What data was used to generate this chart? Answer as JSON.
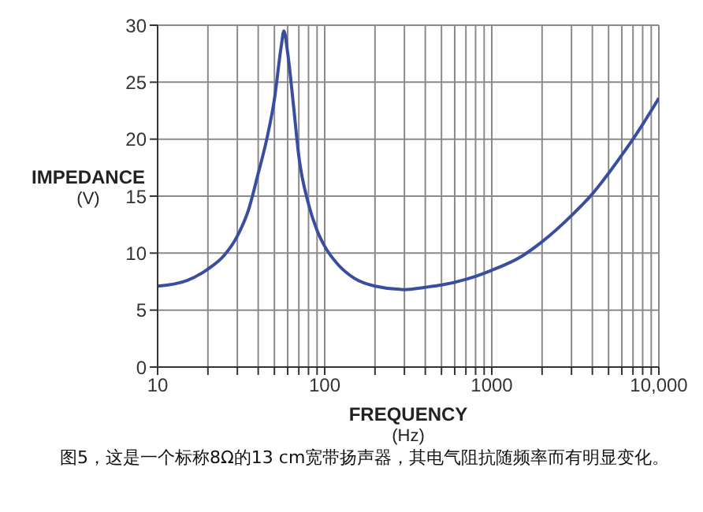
{
  "chart_data": {
    "type": "line",
    "xlabel": "FREQUENCY\n(Hz)",
    "ylabel": "IMPEDANCE\n(V)",
    "log": "x",
    "grid": true,
    "legend": false,
    "marker": "none",
    "line_style": "solid",
    "xlim": [
      10,
      10000
    ],
    "ylim": [
      0,
      30
    ],
    "xticks": [
      10,
      {
        "value": 20,
        "label": null
      },
      {
        "value": 30,
        "label": null
      },
      {
        "value": 40,
        "label": null
      },
      {
        "value": 50,
        "label": null
      },
      {
        "value": 60,
        "label": null
      },
      {
        "value": 70,
        "label": null
      },
      {
        "value": 80,
        "label": null
      },
      {
        "value": 90,
        "label": null
      },
      100,
      {
        "value": 200,
        "label": null
      },
      {
        "value": 300,
        "label": null
      },
      {
        "value": 400,
        "label": null
      },
      {
        "value": 500,
        "label": null
      },
      {
        "value": 600,
        "label": null
      },
      {
        "value": 700,
        "label": null
      },
      {
        "value": 800,
        "label": null
      },
      {
        "value": 900,
        "label": null
      },
      1000,
      {
        "value": 2000,
        "label": null
      },
      {
        "value": 3000,
        "label": null
      },
      {
        "value": 4000,
        "label": null
      },
      {
        "value": 5000,
        "label": null
      },
      {
        "value": 6000,
        "label": null
      },
      {
        "value": 7000,
        "label": null
      },
      {
        "value": 8000,
        "label": null
      },
      {
        "value": 9000,
        "label": null
      },
      {
        "value": 10000,
        "label": "10,000"
      }
    ],
    "yticks": [
      0,
      5,
      10,
      15,
      20,
      25,
      30
    ],
    "x": [
      10,
      15,
      20,
      25,
      30,
      35,
      40,
      45,
      50,
      55,
      57,
      60,
      65,
      70,
      80,
      90,
      100,
      120,
      150,
      200,
      300,
      400,
      500,
      700,
      1000,
      1500,
      2000,
      3000,
      4000,
      5000,
      6000,
      7000,
      8000,
      9000,
      10000
    ],
    "series": [
      {
        "color": "#3a4ea0",
        "values": [
          7.1,
          7.6,
          8.6,
          9.8,
          11.5,
          13.8,
          17,
          20,
          23.5,
          28.2,
          29.5,
          27.6,
          23,
          18.5,
          14.3,
          12,
          10.6,
          9,
          7.8,
          7.1,
          6.8,
          7.0,
          7.2,
          7.7,
          8.5,
          9.7,
          11,
          13.3,
          15.2,
          17,
          18.6,
          20,
          21.3,
          22.5,
          23.6
        ]
      }
    ],
    "annotations": [
      "图5，这是一个标称8Ω的13 cm宽带扬声器，其电气阻抗随频率而有明显变化。"
    ]
  }
}
